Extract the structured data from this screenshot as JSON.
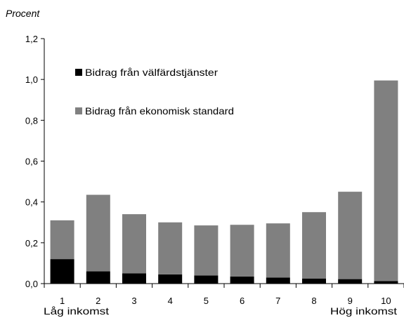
{
  "colors": {
    "welfare": "#000000",
    "economic": "#808080",
    "axis": "#000000"
  },
  "chart_data": {
    "type": "bar",
    "stacked": true,
    "ylabel": "Procent",
    "ylim": [
      0,
      1.2
    ],
    "yticks": [
      "0,0",
      "0,2",
      "0,4",
      "0,6",
      "0,8",
      "1,0",
      "1,2"
    ],
    "ytick_values": [
      0,
      0.2,
      0.4,
      0.6,
      0.8,
      1.0,
      1.2
    ],
    "grid": false,
    "legend_position": "top-left",
    "categories": [
      "1",
      "2",
      "3",
      "4",
      "5",
      "6",
      "7",
      "8",
      "9",
      "10"
    ],
    "x_annotations": {
      "low": "Låg inkomst",
      "high": "Hög inkomst"
    },
    "series": [
      {
        "name": "Bidrag från välfärdstjänster",
        "color": "#000000",
        "values": [
          0.12,
          0.06,
          0.05,
          0.045,
          0.04,
          0.035,
          0.03,
          0.025,
          0.022,
          0.012
        ]
      },
      {
        "name": "Bidrag från ekonomisk standard",
        "color": "#808080",
        "values": [
          0.19,
          0.375,
          0.29,
          0.255,
          0.245,
          0.253,
          0.265,
          0.325,
          0.428,
          0.983
        ]
      }
    ]
  }
}
